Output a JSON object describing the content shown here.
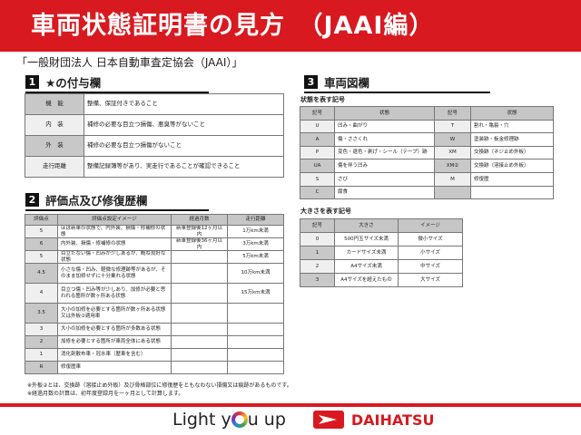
{
  "header": {
    "title": "車両状態証明書の見方　（JAAI編）",
    "bg": "#d81920"
  },
  "organization": "「一般財団法人 日本自動車査定協会（JAAI）」",
  "section1": {
    "num": "1",
    "title": "★の付与欄",
    "rows": [
      [
        "機　能",
        "整備、保証付きであること"
      ],
      [
        "内　装",
        "補修の必要な目立つ損傷、悪臭等がないこと"
      ],
      [
        "外　装",
        "補修の必要な目立つ損傷がないこと"
      ],
      [
        "走行距離",
        "整備記録簿等があり、実走行であることが確認できること"
      ]
    ]
  },
  "section2": {
    "num": "2",
    "title": "評価点及び修復歴欄",
    "headers": [
      "評価点",
      "評価点設定イメージ",
      "経過月数",
      "走行距離"
    ],
    "rows": [
      [
        "5",
        "ほぼ新車の状態で、内外装、損傷・修補修の状態",
        "新車登録後12ヶ月以内",
        "1万km未満"
      ],
      [
        "6",
        "内外装、損傷・修補修の状態",
        "新車登録後36ヶ月以内",
        "3万km未満"
      ],
      [
        "5",
        "目立たない傷・凹みが少しあるが、概ね良好な状態",
        "",
        "5万km未満"
      ],
      [
        "4.5",
        "小さな傷・凹み、軽微な修理跡等があるが、そのまま加修せずに十分乗れる状態",
        "",
        "10万km未満"
      ],
      [
        "4",
        "目立つ傷・凹み等が少しあり、加修が必要と思われる箇所が数ヶ所ある状態",
        "",
        "15万km未満"
      ],
      [
        "3.5",
        "大小の加修を必要とする箇所が数ヶ所ある状態又は外板②適用車",
        "",
        ""
      ],
      [
        "3",
        "大小の加修を必要とする箇所が多数ある状態",
        "",
        ""
      ],
      [
        "2",
        "加修を必要とする箇所が車両全体にある状態",
        "",
        ""
      ],
      [
        "1",
        "消化剤散布車・冠水車（歴車を含む）",
        "",
        ""
      ],
      [
        "R",
        "修復歴車",
        "",
        ""
      ]
    ]
  },
  "section3": {
    "num": "3",
    "title": "車両図欄",
    "condition_caption": "状態を表す記号",
    "condition_headers": [
      "記号",
      "状態",
      "記号",
      "状態"
    ],
    "condition_rows": [
      [
        "U",
        "凹み・曲がり",
        "T",
        "割れ・亀裂・穴"
      ],
      [
        "A",
        "傷・ささくれ",
        "W",
        "塗装跡・板金修理跡"
      ],
      [
        "P",
        "変色・退色・剥げ・シール（テープ）跡",
        "XM",
        "交換跡（ネジ止め外板）"
      ],
      [
        "UA",
        "傷を伴う凹み",
        "XM②",
        "交換跡（溶接止め外板）"
      ],
      [
        "S",
        "さび",
        "M",
        "修復歴"
      ],
      [
        "C",
        "腐食",
        "",
        ""
      ]
    ],
    "size_caption": "大きさを表す記号",
    "size_headers": [
      "記号",
      "大きさ",
      "イメージ"
    ],
    "size_rows": [
      [
        "0",
        "500円玉サイズ未満",
        "微小サイズ"
      ],
      [
        "1",
        "カードサイズ未満",
        "小サイズ"
      ],
      [
        "2",
        "A4サイズ未満",
        "中サイズ"
      ],
      [
        "3",
        "A4サイズを超えたもの",
        "大サイズ"
      ]
    ]
  },
  "notes": [
    "※外板②とは、交換跡（溶接止め外板）及び骨格部位に修復歴をともなわない損傷又は痕跡があるものです。",
    "※経過月数の計算は、初年度登録月を一ヶ月として計算します。"
  ],
  "footer": {
    "slogan_pre": "Light y",
    "slogan_post": "u up",
    "brand": "DAIHATSU",
    "accent": "#d81920"
  }
}
